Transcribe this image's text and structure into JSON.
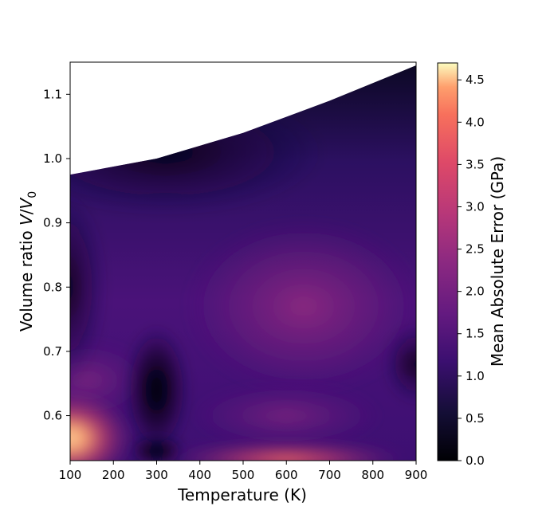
{
  "chart_data": {
    "type": "heatmap",
    "title": "",
    "xlabel": "Temperature (K)",
    "ylabel": "Volume ratio V/V0",
    "ylabel_parts": {
      "main": "Volume ratio ",
      "v": "V",
      "slash": "/",
      "v0": "V",
      "sub": "0"
    },
    "xlim": [
      100,
      900
    ],
    "ylim": [
      0.53,
      1.15
    ],
    "xticks": [
      100,
      200,
      300,
      400,
      500,
      600,
      700,
      800,
      900
    ],
    "yticks": [
      0.6,
      0.7,
      0.8,
      0.9,
      1.0,
      1.1
    ],
    "colormap": "magma",
    "colorbar": {
      "label": "Mean Absolute Error (GPa)",
      "range": [
        0,
        4.7
      ],
      "ticks": [
        "0.0",
        "0.5",
        "1.0",
        "1.5",
        "2.0",
        "2.5",
        "3.0",
        "3.5",
        "4.0",
        "4.5"
      ]
    },
    "upper_volume_boundary": {
      "temperature": [
        100,
        300,
        500,
        700,
        900
      ],
      "volume_ratio": [
        0.975,
        1.0,
        1.04,
        1.09,
        1.145
      ]
    },
    "hotspots": [
      {
        "temperature": 100,
        "volume_ratio": 0.565,
        "mae": 4.2
      },
      {
        "temperature": 600,
        "volume_ratio": 0.535,
        "mae": 3.0
      },
      {
        "temperature": 300,
        "volume_ratio": 0.545,
        "mae": 0.0
      },
      {
        "temperature": 300,
        "volume_ratio": 0.64,
        "mae": 0.1
      },
      {
        "temperature": 100,
        "volume_ratio": 0.8,
        "mae": 0.05
      },
      {
        "temperature": 900,
        "volume_ratio": 0.68,
        "mae": 0.2
      },
      {
        "temperature": 650,
        "volume_ratio": 0.75,
        "mae": 2.0
      },
      {
        "temperature": 400,
        "volume_ratio": 1.0,
        "mae": 0.1
      }
    ]
  }
}
